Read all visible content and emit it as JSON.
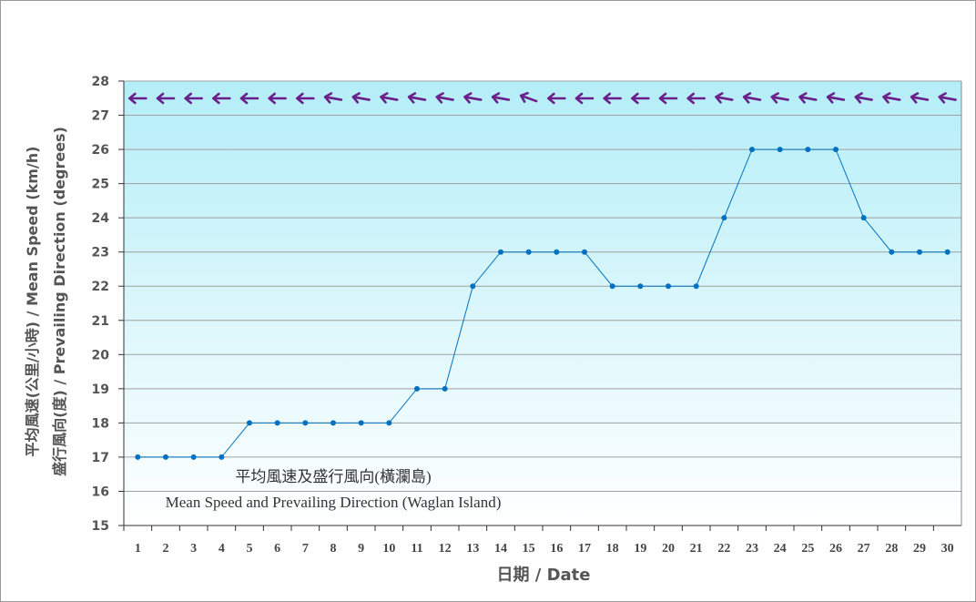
{
  "chart_data": {
    "type": "line",
    "title_zh": "平均風速及盛行風向(橫瀾島)",
    "title_en": "Mean Speed and Prevailing Direction (Waglan Island)",
    "xlabel": "日期 / Date",
    "ylabel_line1": "平均風速(公里/小時) / Mean Speed (km/h)",
    "ylabel_line2": "盛行風向(度) / Prevailing Direction (degrees)",
    "ylim": [
      15,
      28
    ],
    "yticks": [
      15,
      16,
      17,
      18,
      19,
      20,
      21,
      22,
      23,
      24,
      25,
      26,
      27,
      28
    ],
    "x": [
      1,
      2,
      3,
      4,
      5,
      6,
      7,
      8,
      9,
      10,
      11,
      12,
      13,
      14,
      15,
      16,
      17,
      18,
      19,
      20,
      21,
      22,
      23,
      24,
      25,
      26,
      27,
      28,
      29,
      30
    ],
    "series": [
      {
        "name": "Mean Speed",
        "color": "#0070c0",
        "values": [
          17,
          17,
          17,
          17,
          18,
          18,
          18,
          18,
          18,
          18,
          19,
          19,
          22,
          23,
          23,
          23,
          23,
          22,
          22,
          22,
          22,
          24,
          26,
          26,
          26,
          26,
          24,
          23,
          23,
          23
        ]
      },
      {
        "name": "Prevailing Direction",
        "color": "#6a1f8a",
        "values": [
          90,
          90,
          90,
          90,
          90,
          90,
          90,
          80,
          80,
          80,
          80,
          80,
          80,
          80,
          70,
          90,
          90,
          90,
          90,
          90,
          90,
          80,
          80,
          80,
          80,
          80,
          80,
          80,
          80,
          80
        ]
      }
    ],
    "grid": true
  }
}
